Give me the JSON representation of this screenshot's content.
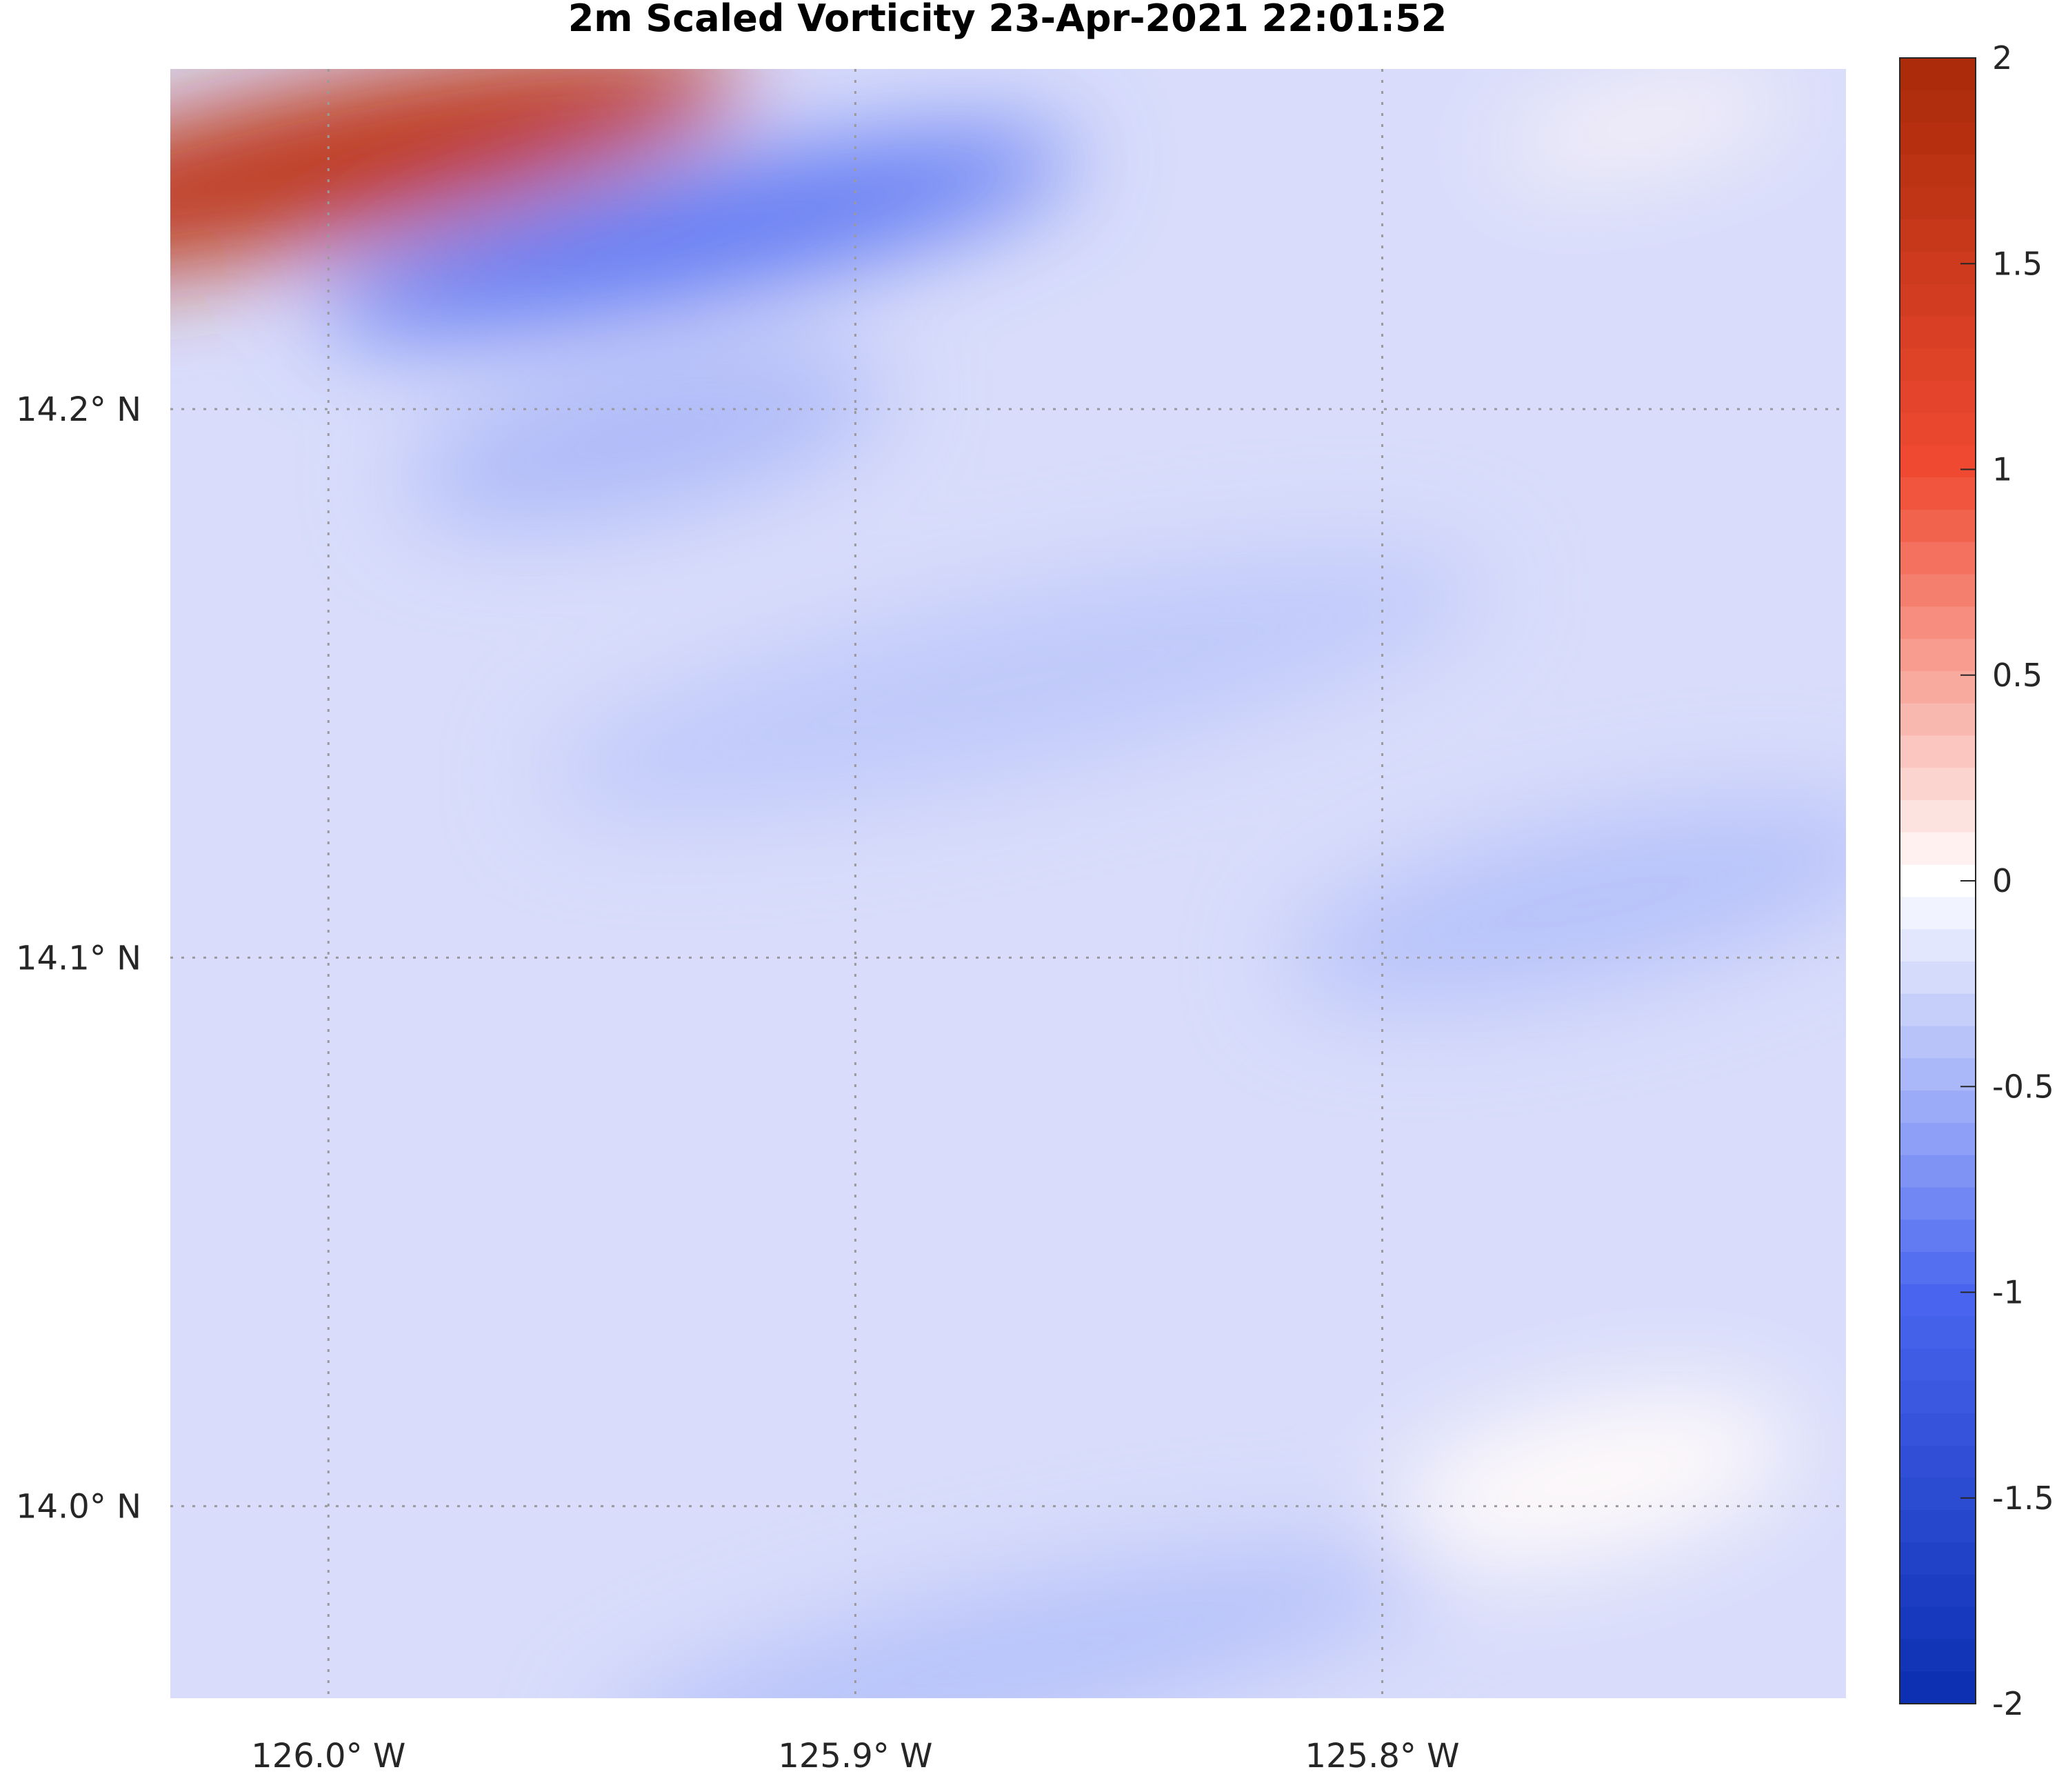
{
  "chart_data": {
    "type": "heatmap",
    "title": "2m Scaled Vorticity  23-Apr-2021 22:01:52",
    "xlabel": "",
    "ylabel": "",
    "x_ticks": [
      {
        "value": -126.0,
        "label": "126.0",
        "suffix": "W"
      },
      {
        "value": -125.9,
        "label": "125.9",
        "suffix": "W"
      },
      {
        "value": -125.8,
        "label": "125.8",
        "suffix": "W"
      }
    ],
    "y_ticks": [
      {
        "value": 14.2,
        "label": "14.2",
        "suffix": "N"
      },
      {
        "value": 14.1,
        "label": "14.1",
        "suffix": "N"
      },
      {
        "value": 14.0,
        "label": "14.0",
        "suffix": "N"
      }
    ],
    "xlim": [
      -126.03,
      -125.712
    ],
    "ylim": [
      13.965,
      14.262
    ],
    "grid": true,
    "colorbar": {
      "range": [
        -2,
        2
      ],
      "levels": 51,
      "ticks": [
        {
          "value": 2,
          "label": "2"
        },
        {
          "value": 1.5,
          "label": "1.5"
        },
        {
          "value": 1,
          "label": "1"
        },
        {
          "value": 0.5,
          "label": "0.5"
        },
        {
          "value": 0,
          "label": "0"
        },
        {
          "value": -0.5,
          "label": "-0.5"
        },
        {
          "value": -1,
          "label": "-1"
        },
        {
          "value": -1.5,
          "label": "-1.5"
        },
        {
          "value": -2,
          "label": "-2"
        }
      ],
      "colors": {
        "neg_end": "#0a2eb0",
        "neg_mid": "#4a66f0",
        "zero": "#ffffff",
        "pos_mid": "#f04a32",
        "pos_end": "#a82a08"
      }
    },
    "field_features": [
      {
        "lon": -126.0,
        "lat": 14.245,
        "value": 1.7
      },
      {
        "lon": -125.93,
        "lat": 14.232,
        "value": -0.9
      },
      {
        "lon": -125.94,
        "lat": 14.195,
        "value": -0.45
      },
      {
        "lon": -125.87,
        "lat": 14.15,
        "value": -0.35
      },
      {
        "lon": -125.76,
        "lat": 14.11,
        "value": -0.4
      },
      {
        "lon": -125.87,
        "lat": 13.972,
        "value": -0.4
      },
      {
        "lon": -125.76,
        "lat": 14.005,
        "value": 0.03
      },
      {
        "lon": -125.75,
        "lat": 14.252,
        "value": 0.05
      }
    ]
  }
}
